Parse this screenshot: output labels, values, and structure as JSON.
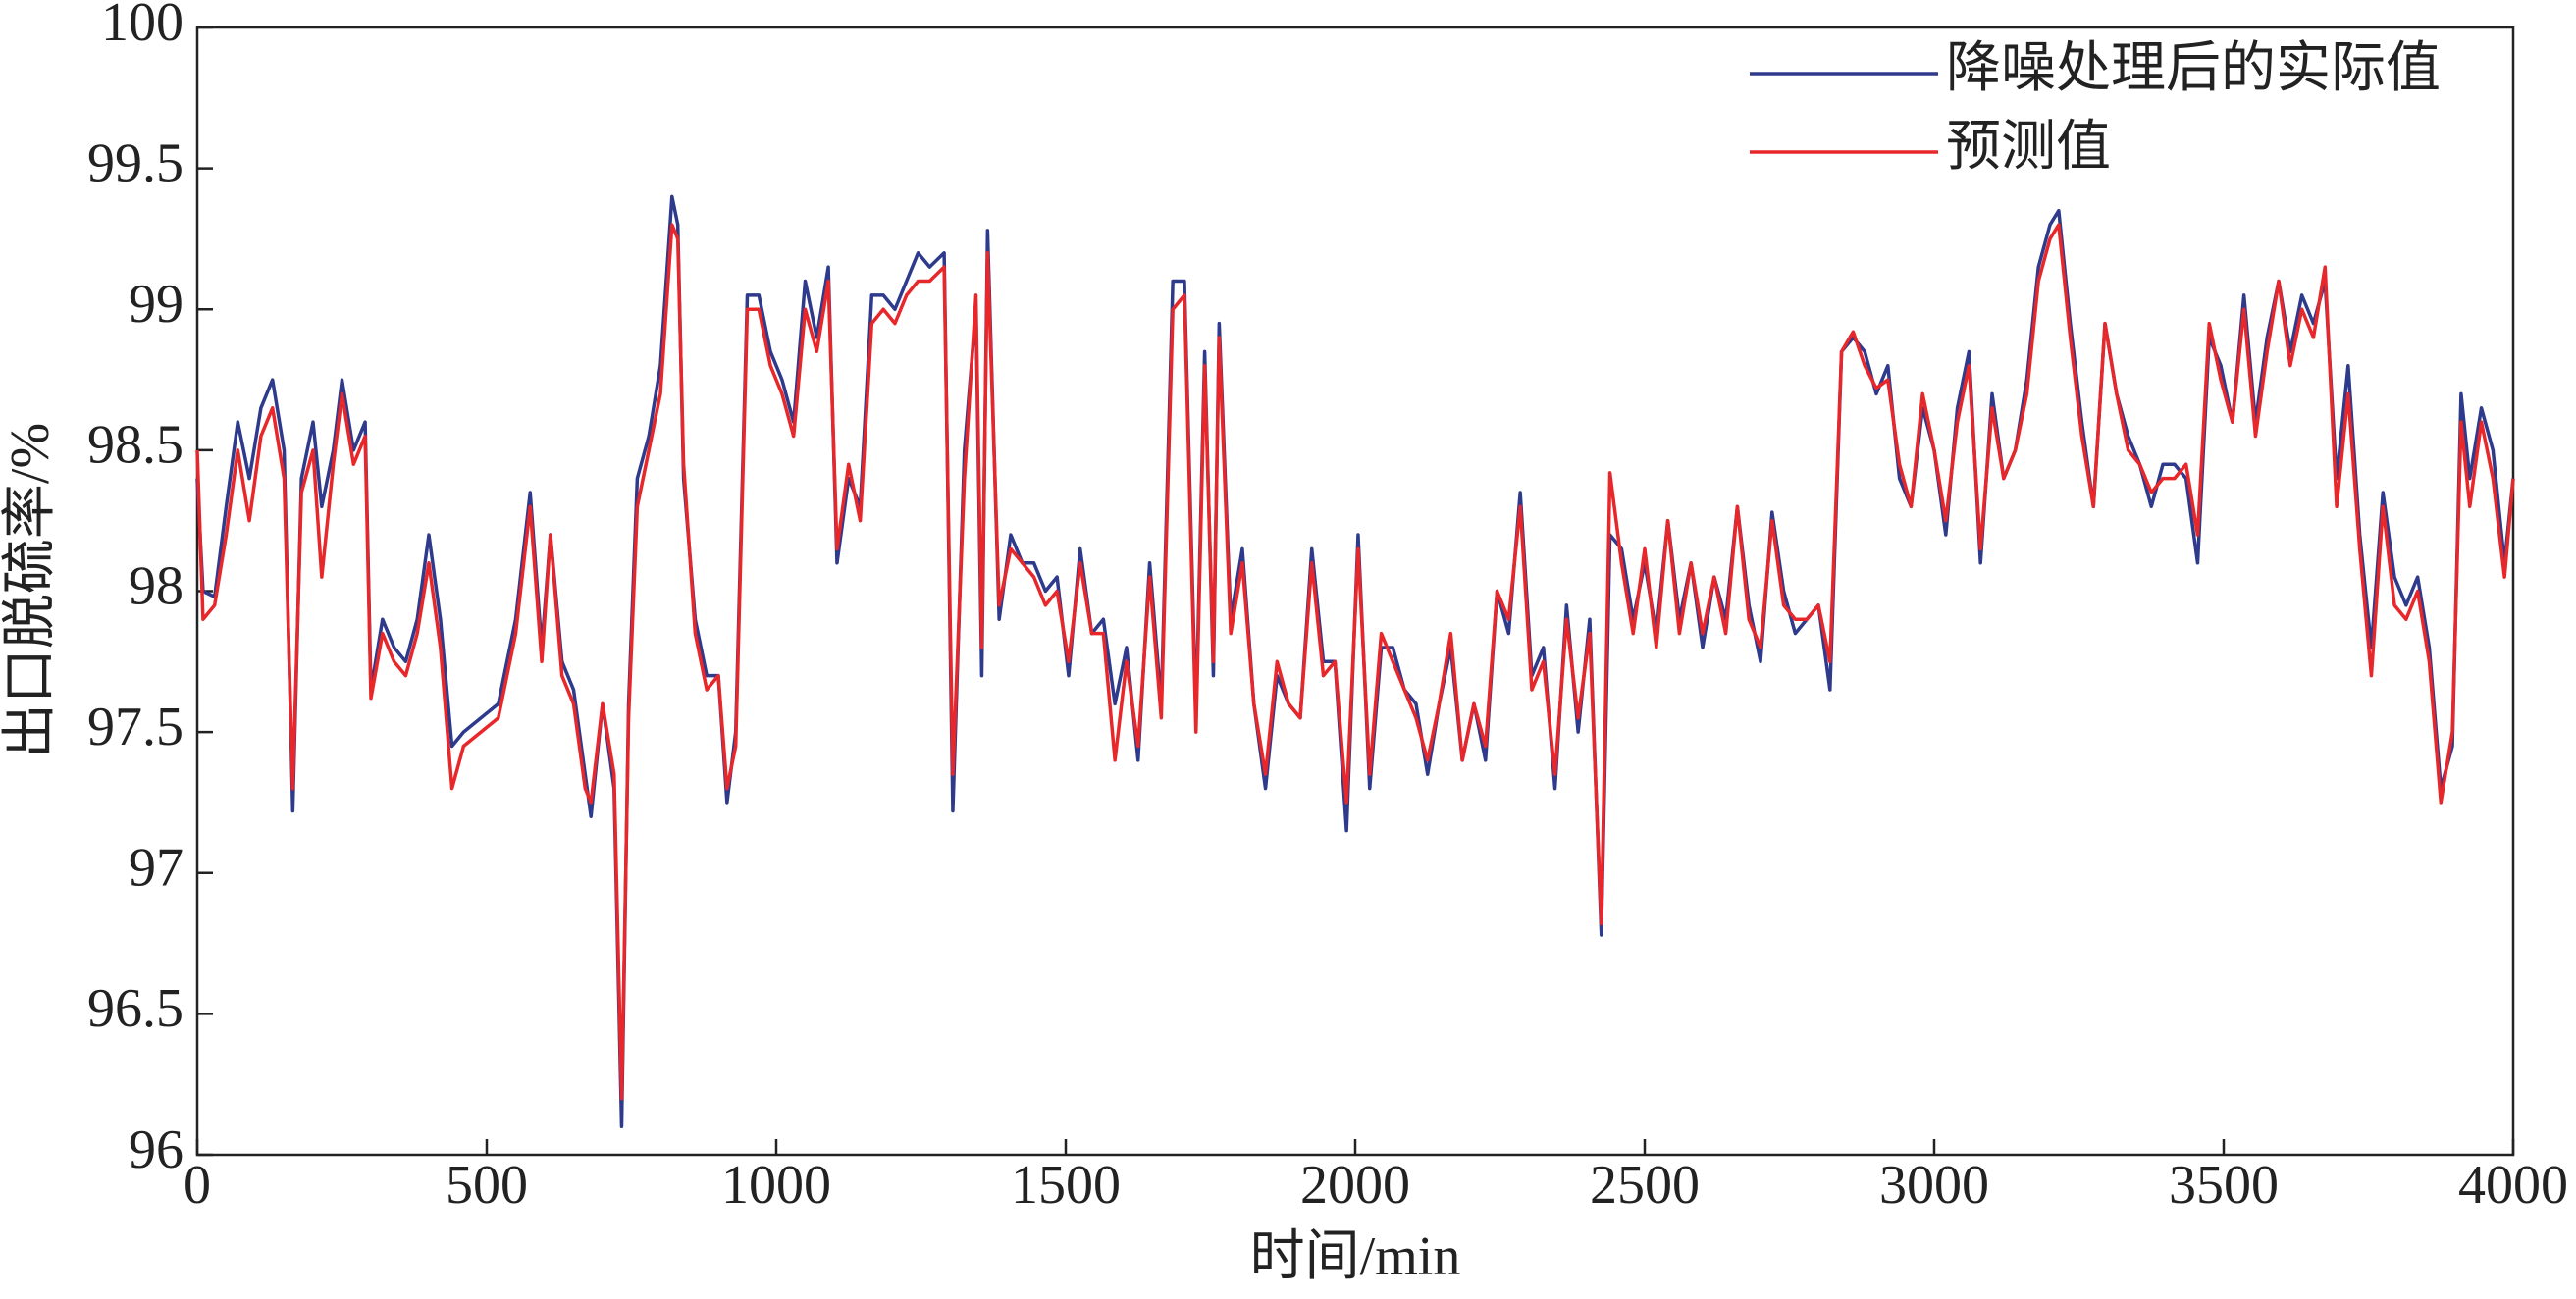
{
  "chart_data": {
    "type": "line",
    "xlabel": "时间/min",
    "ylabel": "出口脱硫率/%",
    "xlim": [
      0,
      4000
    ],
    "xticks": [
      0,
      500,
      1000,
      1500,
      2000,
      2500,
      3000,
      3500,
      4000
    ],
    "ylim": [
      96,
      100
    ],
    "yticks": [
      96,
      96.5,
      97,
      97.5,
      98,
      98.5,
      99,
      99.5,
      100
    ],
    "legend": "top-right",
    "x": [
      0,
      10,
      30,
      50,
      70,
      90,
      110,
      130,
      150,
      165,
      180,
      200,
      215,
      235,
      250,
      270,
      290,
      300,
      320,
      340,
      360,
      380,
      400,
      420,
      440,
      460,
      490,
      520,
      550,
      575,
      595,
      610,
      630,
      650,
      670,
      680,
      700,
      720,
      733,
      745,
      760,
      780,
      800,
      820,
      830,
      840,
      860,
      880,
      900,
      915,
      930,
      950,
      970,
      990,
      1010,
      1030,
      1050,
      1070,
      1090,
      1105,
      1125,
      1145,
      1165,
      1185,
      1205,
      1225,
      1245,
      1265,
      1290,
      1305,
      1325,
      1345,
      1355,
      1365,
      1385,
      1405,
      1425,
      1445,
      1465,
      1485,
      1505,
      1525,
      1545,
      1565,
      1585,
      1605,
      1625,
      1645,
      1665,
      1685,
      1705,
      1725,
      1740,
      1755,
      1765,
      1785,
      1805,
      1825,
      1845,
      1865,
      1885,
      1905,
      1925,
      1945,
      1965,
      1985,
      2005,
      2025,
      2045,
      2065,
      2085,
      2105,
      2125,
      2145,
      2165,
      2185,
      2205,
      2225,
      2245,
      2265,
      2285,
      2305,
      2325,
      2345,
      2365,
      2385,
      2405,
      2425,
      2440,
      2460,
      2480,
      2500,
      2520,
      2540,
      2560,
      2580,
      2600,
      2620,
      2640,
      2660,
      2680,
      2700,
      2720,
      2740,
      2760,
      2780,
      2800,
      2820,
      2840,
      2860,
      2880,
      2900,
      2920,
      2940,
      2960,
      2980,
      3000,
      3020,
      3040,
      3060,
      3080,
      3100,
      3120,
      3140,
      3160,
      3180,
      3200,
      3215,
      3235,
      3255,
      3275,
      3295,
      3315,
      3335,
      3355,
      3375,
      3395,
      3415,
      3435,
      3455,
      3475,
      3495,
      3515,
      3535,
      3555,
      3575,
      3595,
      3615,
      3635,
      3655,
      3675,
      3695,
      3715,
      3735,
      3755,
      3775,
      3795,
      3815,
      3835,
      3855,
      3875,
      3895,
      3910,
      3925,
      3945,
      3965,
      3985,
      4000
    ],
    "series": [
      {
        "name": "降噪处理后的实际值",
        "color": "#2e3a8c",
        "values": [
          98.4,
          98.0,
          97.98,
          98.3,
          98.6,
          98.4,
          98.65,
          98.75,
          98.5,
          97.22,
          98.4,
          98.6,
          98.3,
          98.5,
          98.75,
          98.5,
          98.6,
          97.65,
          97.9,
          97.8,
          97.75,
          97.9,
          98.2,
          97.9,
          97.45,
          97.5,
          97.55,
          97.6,
          97.9,
          98.35,
          97.8,
          98.2,
          97.75,
          97.65,
          97.35,
          97.2,
          97.6,
          97.3,
          96.1,
          97.6,
          98.4,
          98.55,
          98.8,
          99.4,
          99.3,
          98.4,
          97.9,
          97.7,
          97.7,
          97.25,
          97.5,
          99.05,
          99.05,
          98.85,
          98.75,
          98.6,
          99.1,
          98.9,
          99.15,
          98.1,
          98.4,
          98.3,
          99.05,
          99.05,
          99.0,
          99.1,
          99.2,
          99.15,
          99.2,
          97.22,
          98.5,
          99.0,
          97.7,
          99.28,
          97.9,
          98.2,
          98.1,
          98.1,
          98.0,
          98.05,
          97.7,
          98.15,
          97.85,
          97.9,
          97.6,
          97.8,
          97.4,
          98.1,
          97.6,
          99.1,
          99.1,
          97.55,
          98.85,
          97.7,
          98.95,
          97.9,
          98.15,
          97.6,
          97.3,
          97.7,
          97.6,
          97.55,
          98.15,
          97.75,
          97.75,
          97.15,
          98.2,
          97.3,
          97.8,
          97.8,
          97.65,
          97.6,
          97.35,
          97.6,
          97.8,
          97.4,
          97.6,
          97.4,
          98.0,
          97.85,
          98.35,
          97.7,
          97.8,
          97.3,
          97.95,
          97.5,
          97.9,
          96.78,
          98.2,
          98.15,
          97.9,
          98.1,
          97.85,
          98.25,
          97.9,
          98.1,
          97.8,
          98.05,
          97.9,
          98.3,
          97.95,
          97.75,
          98.28,
          98.0,
          97.85,
          97.9,
          97.95,
          97.65,
          98.85,
          98.9,
          98.85,
          98.7,
          98.8,
          98.4,
          98.3,
          98.65,
          98.5,
          98.2,
          98.65,
          98.85,
          98.1,
          98.7,
          98.4,
          98.5,
          98.75,
          99.15,
          99.3,
          99.35,
          98.95,
          98.6,
          98.3,
          98.95,
          98.7,
          98.55,
          98.45,
          98.3,
          98.45,
          98.45,
          98.4,
          98.1,
          98.9,
          98.8,
          98.6,
          99.05,
          98.6,
          98.9,
          99.1,
          98.85,
          99.05,
          98.95,
          99.1,
          98.4,
          98.8,
          98.2,
          97.8,
          98.35,
          98.05,
          97.95,
          98.05,
          97.8,
          97.3,
          97.45,
          98.7,
          98.4,
          98.65,
          98.5,
          98.1,
          98.4
        ]
      },
      {
        "name": "预测值",
        "color": "#e8272a",
        "values": [
          98.5,
          97.9,
          97.95,
          98.2,
          98.5,
          98.25,
          98.55,
          98.65,
          98.4,
          97.3,
          98.35,
          98.5,
          98.05,
          98.45,
          98.7,
          98.45,
          98.55,
          97.62,
          97.85,
          97.75,
          97.7,
          97.85,
          98.1,
          97.8,
          97.3,
          97.45,
          97.5,
          97.55,
          97.85,
          98.3,
          97.75,
          98.2,
          97.7,
          97.6,
          97.3,
          97.25,
          97.6,
          97.35,
          96.2,
          97.55,
          98.3,
          98.5,
          98.7,
          99.3,
          99.25,
          98.45,
          97.85,
          97.65,
          97.7,
          97.3,
          97.45,
          99.0,
          99.0,
          98.8,
          98.7,
          98.55,
          99.0,
          98.85,
          99.1,
          98.15,
          98.45,
          98.25,
          98.95,
          99.0,
          98.95,
          99.05,
          99.1,
          99.1,
          99.15,
          97.35,
          98.4,
          99.05,
          97.8,
          99.2,
          97.95,
          98.15,
          98.1,
          98.05,
          97.95,
          98.0,
          97.75,
          98.1,
          97.85,
          97.85,
          97.4,
          97.75,
          97.45,
          98.05,
          97.55,
          99.0,
          99.05,
          97.5,
          98.8,
          97.75,
          98.9,
          97.85,
          98.1,
          97.6,
          97.35,
          97.75,
          97.6,
          97.55,
          98.1,
          97.7,
          97.75,
          97.25,
          98.15,
          97.35,
          97.85,
          97.75,
          97.65,
          97.55,
          97.4,
          97.6,
          97.85,
          97.4,
          97.6,
          97.45,
          98.0,
          97.9,
          98.3,
          97.65,
          97.75,
          97.35,
          97.9,
          97.55,
          97.85,
          96.82,
          98.42,
          98.1,
          97.85,
          98.15,
          97.8,
          98.25,
          97.85,
          98.1,
          97.85,
          98.05,
          97.85,
          98.3,
          97.9,
          97.8,
          98.25,
          97.95,
          97.9,
          97.9,
          97.95,
          97.75,
          98.85,
          98.92,
          98.8,
          98.72,
          98.75,
          98.45,
          98.3,
          98.7,
          98.5,
          98.25,
          98.6,
          98.8,
          98.15,
          98.65,
          98.4,
          98.5,
          98.7,
          99.1,
          99.25,
          99.3,
          98.9,
          98.55,
          98.3,
          98.95,
          98.7,
          98.5,
          98.45,
          98.35,
          98.4,
          98.4,
          98.45,
          98.2,
          98.95,
          98.75,
          98.6,
          99.0,
          98.55,
          98.85,
          99.1,
          98.8,
          99.0,
          98.9,
          99.15,
          98.3,
          98.7,
          98.15,
          97.7,
          98.3,
          97.95,
          97.9,
          98.0,
          97.75,
          97.25,
          97.5,
          98.6,
          98.3,
          98.6,
          98.4,
          98.05,
          98.4
        ]
      }
    ]
  }
}
